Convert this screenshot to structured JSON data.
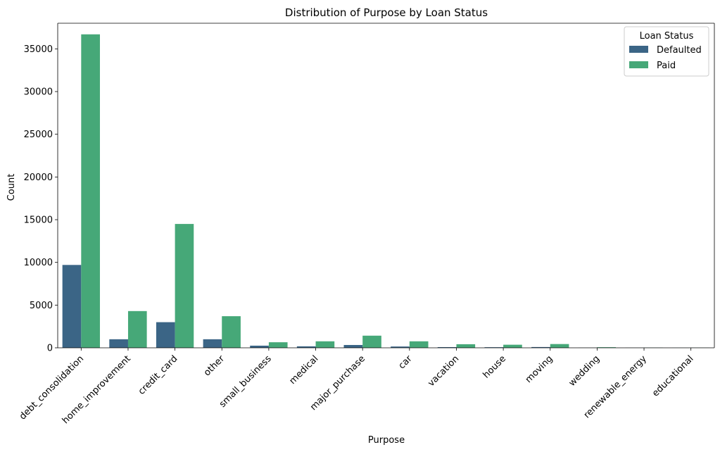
{
  "chart_data": {
    "type": "bar",
    "title": "Distribution of Purpose by Loan Status",
    "xlabel": "Purpose",
    "ylabel": "Count",
    "ylim": [
      0,
      38000
    ],
    "yticks": [
      0,
      5000,
      10000,
      15000,
      20000,
      25000,
      30000,
      35000
    ],
    "grid": false,
    "legend": {
      "title": "Loan Status",
      "position": "top-right"
    },
    "categories": [
      "debt_consolidation",
      "home_improvement",
      "credit_card",
      "other",
      "small_business",
      "medical",
      "major_purchase",
      "car",
      "vacation",
      "house",
      "moving",
      "wedding",
      "renewable_energy",
      "educational"
    ],
    "series": [
      {
        "name": "Defaulted",
        "color": "#3b6586",
        "values": [
          9700,
          1000,
          3000,
          1000,
          250,
          170,
          330,
          150,
          80,
          70,
          90,
          10,
          10,
          5
        ]
      },
      {
        "name": "Paid",
        "color": "#46a878",
        "values": [
          36700,
          4300,
          14500,
          3700,
          650,
          760,
          1420,
          760,
          420,
          360,
          440,
          70,
          20,
          15
        ]
      }
    ]
  }
}
